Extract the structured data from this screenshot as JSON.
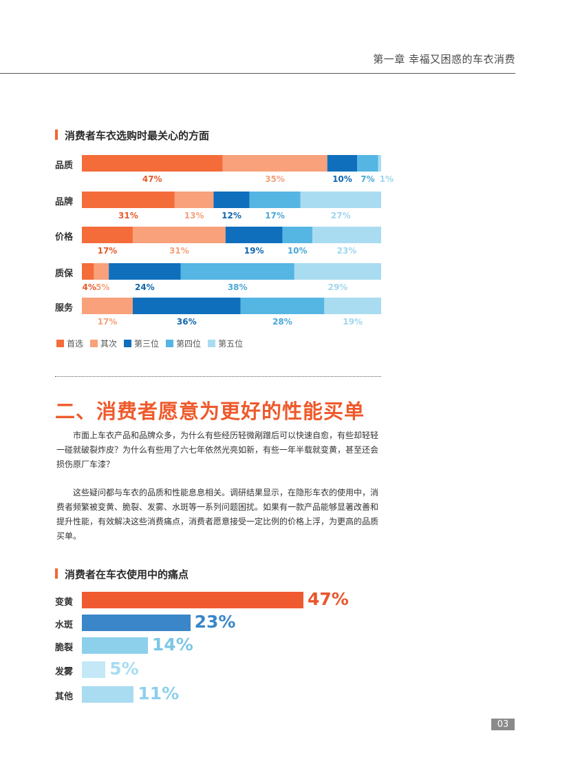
{
  "header": {
    "chapter_title": "第一章 幸福又困惑的车衣消费"
  },
  "chart1_title": "消费者车衣选购时最关心的方面",
  "chart_data": [
    {
      "type": "bar",
      "orientation": "horizontal",
      "stacked": true,
      "normalized": true,
      "title": "消费者车衣选购时最关心的方面",
      "categories": [
        "品质",
        "品牌",
        "价格",
        "质保",
        "服务"
      ],
      "series": [
        {
          "name": "首选",
          "values": [
            47,
            31,
            17,
            4,
            0
          ]
        },
        {
          "name": "其次",
          "values": [
            35,
            13,
            31,
            5,
            17
          ]
        },
        {
          "name": "第三位",
          "values": [
            10,
            12,
            19,
            24,
            36
          ]
        },
        {
          "name": "第四位",
          "values": [
            7,
            17,
            10,
            38,
            28
          ]
        },
        {
          "name": "第五位",
          "values": [
            1,
            27,
            23,
            29,
            19
          ]
        }
      ],
      "legend_position": "bottom-left",
      "colors": [
        "#f46c3a",
        "#f8a17a",
        "#0f6fbd",
        "#55b5e3",
        "#a9dcf0"
      ],
      "label_colors": [
        "#e65a2a",
        "#f4a07b",
        "#0f66ae",
        "#4ba8d6",
        "#9fd6ee"
      ]
    },
    {
      "type": "bar",
      "orientation": "horizontal",
      "title": "消费者在车衣使用中的痛点",
      "categories": [
        "变黄",
        "水斑",
        "脆裂",
        "发雾",
        "其他"
      ],
      "values": [
        47,
        23,
        14,
        5,
        11
      ],
      "colors": [
        "#f05a30",
        "#3a86c8",
        "#8dd0ec",
        "#c4e8f6",
        "#a9dcf0"
      ],
      "label_colors": [
        "#e8562d",
        "#3a86c8",
        "#7cc6e6",
        "#a6dcf2",
        "#8ecfeb"
      ]
    }
  ],
  "section": {
    "heading": "二、消费者愿意为更好的性能买单",
    "paragraph1": "市面上车衣产品和品牌众多，为什么有些经历轻微剐蹭后可以快速自愈，有些却轻轻一碰就破裂炸皮？为什么有些用了六七年依然光亮如新，有些一年半载就变黄，甚至还会损伤原厂车漆？",
    "paragraph2": "这些疑问都与车衣的品质和性能息息相关。调研结果显示，在隐形车衣的使用中，消费者频繁被变黄、脆裂、发雾、水斑等一系列问题困扰。如果有一款产品能够显著改善和提升性能，有效解决这些消费痛点，消费者愿意接受一定比例的价格上浮，为更高的品质买单。"
  },
  "chart2_title": "消费者在车衣使用中的痛点",
  "page_number": "03"
}
